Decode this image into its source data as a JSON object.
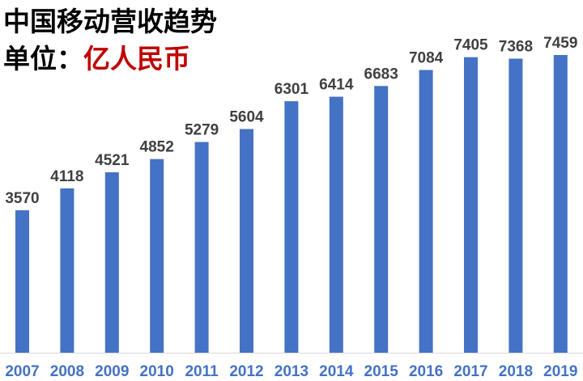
{
  "title": "中国移动营收趋势",
  "unit_prefix": "单位：",
  "unit_value": "亿人民币",
  "colors": {
    "bar": "#4472c4",
    "value_label": "#404040",
    "category_label": "#4472c4",
    "unit": "#c00000",
    "axis": "#d9d9d9"
  },
  "chart_data": {
    "type": "bar",
    "title": "中国移动营收趋势",
    "subtitle": "单位：亿人民币",
    "categories": [
      "2007",
      "2008",
      "2009",
      "2010",
      "2011",
      "2012",
      "2013",
      "2014",
      "2015",
      "2016",
      "2017",
      "2018",
      "2019"
    ],
    "values": [
      3570,
      4118,
      4521,
      4852,
      5279,
      5604,
      6301,
      6414,
      6683,
      7084,
      7405,
      7368,
      7459
    ],
    "data_labels": true,
    "xlabel": "",
    "ylabel": "",
    "ylim": [
      0,
      7459
    ],
    "grid": false,
    "legend": "none"
  }
}
